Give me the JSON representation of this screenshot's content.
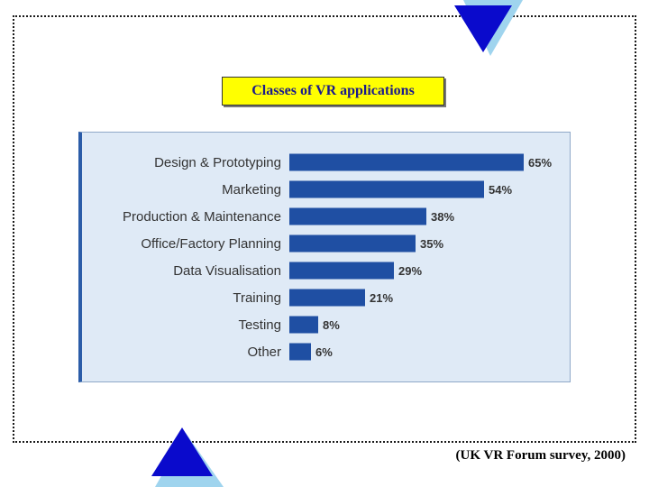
{
  "title": "Classes of VR applications",
  "source_caption": "(UK VR Forum survey, 2000)",
  "colors": {
    "bar": "#1f4fa3",
    "panel": "#dfeaf6",
    "label_text": "#333333",
    "title_bg": "#ffff00",
    "title_text": "#1a1a8c",
    "triangle_fill": "#0a0acc",
    "triangle_shadow": "#9fd4ee"
  },
  "icons": [
    "triangle-down-icon",
    "triangle-up-icon"
  ],
  "chart_data": {
    "type": "bar",
    "orientation": "horizontal",
    "categories": [
      "Design & Prototyping",
      "Marketing",
      "Production & Maintenance",
      "Office/Factory Planning",
      "Data Visualisation",
      "Training",
      "Testing",
      "Other"
    ],
    "values": [
      65,
      54,
      38,
      35,
      29,
      21,
      8,
      6
    ],
    "value_labels": [
      "65%",
      "54%",
      "38%",
      "35%",
      "29%",
      "21%",
      "8%",
      "6%"
    ],
    "unit": "%",
    "xlim": [
      0,
      65
    ],
    "grid": false,
    "legend": "none"
  }
}
